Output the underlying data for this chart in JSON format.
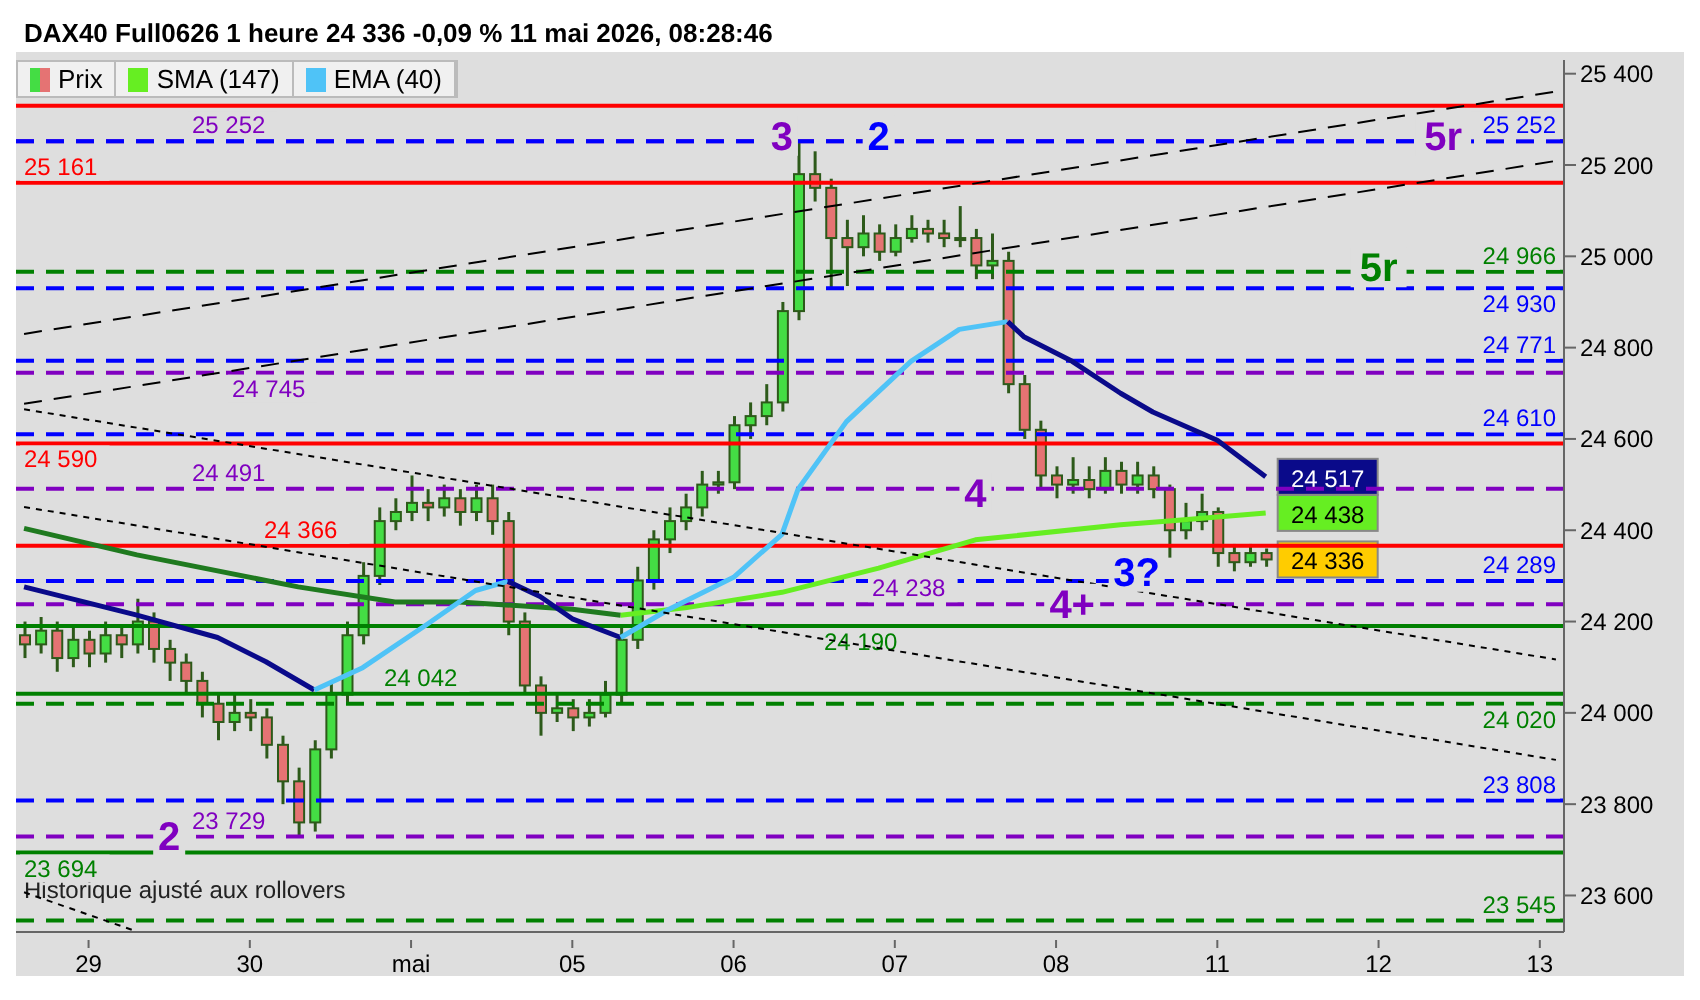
{
  "chart_data": {
    "type": "candlestick",
    "title": "DAX40 Full0626 1 heure 24 336 -0,09 % 11 mai 2026, 08:28:46",
    "legend": "top left",
    "categories": [
      null,
      null,
      null,
      null,
      "29",
      null,
      null,
      null,
      null,
      null,
      null,
      null,
      null,
      null,
      "30",
      null,
      null,
      null,
      null,
      null,
      null,
      null,
      null,
      null,
      "mai",
      null,
      null,
      null,
      null,
      null,
      null,
      null,
      null,
      null,
      "05",
      null,
      null,
      null,
      null,
      null,
      null,
      null,
      null,
      null,
      "06",
      null,
      null,
      null,
      null,
      null,
      null,
      null,
      null,
      null,
      "07",
      null,
      null,
      null,
      null,
      null,
      null,
      null,
      null,
      null,
      "08",
      null,
      null,
      null,
      null,
      null,
      null,
      null,
      null,
      null,
      "11",
      null,
      null,
      null,
      null,
      null,
      null,
      null,
      null,
      null,
      "12",
      null,
      null,
      null,
      null,
      null,
      null,
      null,
      null,
      null,
      "13",
      null
    ],
    "ylim": [
      23520,
      25430
    ],
    "yticks": [
      {
        "value": 23600,
        "label": "23 600"
      },
      {
        "value": 23800,
        "label": "23 800"
      },
      {
        "value": 24000,
        "label": "24 000"
      },
      {
        "value": 24200,
        "label": "24 200"
      },
      {
        "value": 24400,
        "label": "24 400"
      },
      {
        "value": 24600,
        "label": "24 600"
      },
      {
        "value": 24800,
        "label": "24 800"
      },
      {
        "value": 25000,
        "label": "25 000"
      },
      {
        "value": 25200,
        "label": "25 200"
      },
      {
        "value": 25400,
        "label": "25 400"
      }
    ],
    "series": [
      {
        "name": "Prix",
        "type": "candlestick",
        "ohlc": [
          [
            24170,
            24200,
            24120,
            24150
          ],
          [
            24150,
            24210,
            24130,
            24180
          ],
          [
            24180,
            24200,
            24090,
            24120
          ],
          [
            24120,
            24190,
            24100,
            24160
          ],
          [
            24160,
            24180,
            24100,
            24130
          ],
          [
            24130,
            24200,
            24110,
            24170
          ],
          [
            24170,
            24190,
            24120,
            24150
          ],
          [
            24150,
            24250,
            24130,
            24200
          ],
          [
            24200,
            24220,
            24110,
            24140
          ],
          [
            24140,
            24160,
            24070,
            24110
          ],
          [
            24110,
            24130,
            24040,
            24070
          ],
          [
            24070,
            24090,
            23990,
            24020
          ],
          [
            24020,
            24040,
            23940,
            23980
          ],
          [
            23980,
            24040,
            23960,
            24000
          ],
          [
            24000,
            24030,
            23960,
            23990
          ],
          [
            23990,
            24010,
            23900,
            23930
          ],
          [
            23930,
            23950,
            23800,
            23850
          ],
          [
            23850,
            23880,
            23729,
            23760
          ],
          [
            23760,
            23940,
            23740,
            23920
          ],
          [
            23920,
            24070,
            23900,
            24040
          ],
          [
            24040,
            24200,
            24020,
            24170
          ],
          [
            24170,
            24330,
            24150,
            24300
          ],
          [
            24300,
            24450,
            24280,
            24420
          ],
          [
            24420,
            24470,
            24400,
            24440
          ],
          [
            24440,
            24520,
            24420,
            24460
          ],
          [
            24460,
            24490,
            24420,
            24450
          ],
          [
            24450,
            24500,
            24430,
            24470
          ],
          [
            24470,
            24490,
            24410,
            24440
          ],
          [
            24440,
            24500,
            24420,
            24470
          ],
          [
            24470,
            24500,
            24390,
            24420
          ],
          [
            24420,
            24440,
            24170,
            24200
          ],
          [
            24200,
            24220,
            24040,
            24060
          ],
          [
            24060,
            24080,
            23950,
            24000
          ],
          [
            24000,
            24040,
            23980,
            24010
          ],
          [
            24010,
            24030,
            23960,
            23990
          ],
          [
            23990,
            24030,
            23970,
            24000
          ],
          [
            24000,
            24070,
            23990,
            24040
          ],
          [
            24040,
            24190,
            24020,
            24160
          ],
          [
            24160,
            24320,
            24140,
            24290
          ],
          [
            24290,
            24400,
            24270,
            24380
          ],
          [
            24380,
            24450,
            24350,
            24420
          ],
          [
            24420,
            24480,
            24400,
            24450
          ],
          [
            24450,
            24530,
            24430,
            24500
          ],
          [
            24500,
            24530,
            24480,
            24505
          ],
          [
            24505,
            24650,
            24490,
            24630
          ],
          [
            24630,
            24680,
            24600,
            24650
          ],
          [
            24650,
            24720,
            24630,
            24680
          ],
          [
            24680,
            24900,
            24660,
            24880
          ],
          [
            24880,
            25252,
            24860,
            25180
          ],
          [
            25180,
            25230,
            25120,
            25150
          ],
          [
            25150,
            25170,
            24930,
            25040
          ],
          [
            25040,
            25080,
            24935,
            25020
          ],
          [
            25020,
            25090,
            25000,
            25050
          ],
          [
            25050,
            25070,
            24990,
            25010
          ],
          [
            25010,
            25070,
            25000,
            25040
          ],
          [
            25040,
            25090,
            25030,
            25060
          ],
          [
            25060,
            25080,
            25030,
            25050
          ],
          [
            25050,
            25080,
            25020,
            25040
          ],
          [
            25040,
            25110,
            25020,
            25040
          ],
          [
            25040,
            25060,
            24950,
            24980
          ],
          [
            24980,
            25050,
            24950,
            24990
          ],
          [
            24990,
            25010,
            24700,
            24720
          ],
          [
            24720,
            24740,
            24600,
            24620
          ],
          [
            24620,
            24640,
            24490,
            24520
          ],
          [
            24520,
            24540,
            24470,
            24500
          ],
          [
            24500,
            24560,
            24480,
            24510
          ],
          [
            24510,
            24540,
            24470,
            24490
          ],
          [
            24490,
            24560,
            24480,
            24530
          ],
          [
            24530,
            24550,
            24480,
            24500
          ],
          [
            24500,
            24550,
            24480,
            24520
          ],
          [
            24520,
            24540,
            24470,
            24490
          ],
          [
            24490,
            24500,
            24340,
            24400
          ],
          [
            24400,
            24460,
            24380,
            24420
          ],
          [
            24420,
            24480,
            24400,
            24440
          ],
          [
            24440,
            24450,
            24320,
            24350
          ],
          [
            24350,
            24370,
            24310,
            24330
          ],
          [
            24330,
            24370,
            24320,
            24350
          ],
          [
            24350,
            24360,
            24320,
            24336
          ],
          null,
          null,
          null,
          null,
          null,
          null,
          null,
          null,
          null,
          null,
          null,
          null,
          null,
          null,
          null,
          null,
          null,
          null
        ],
        "value_labels": [
          null,
          null,
          null,
          null,
          null,
          null,
          null,
          null,
          null,
          null,
          null,
          null,
          null,
          null,
          null,
          null,
          null,
          null,
          null,
          null,
          null,
          null,
          null,
          null,
          null,
          null,
          null,
          null,
          null,
          null,
          null,
          null,
          null,
          null,
          null,
          null,
          null,
          null,
          null,
          null,
          null,
          null,
          null,
          null,
          null,
          null,
          null,
          null,
          null,
          null,
          null,
          null,
          null,
          null,
          null,
          null,
          null,
          null,
          null,
          null,
          null,
          null,
          null,
          null,
          null,
          null,
          null,
          null,
          null,
          null,
          null,
          null,
          null,
          null,
          null,
          null,
          null,
          "24 336",
          null,
          null,
          null,
          null,
          null,
          null,
          null,
          null,
          null,
          null,
          null,
          null,
          null,
          null,
          null,
          null,
          null,
          null
        ]
      },
      {
        "type": "line",
        "color": "#1f7a1f",
        "values": [
          24404,
          null,
          null,
          null,
          null,
          null,
          null,
          24346,
          null,
          null,
          null,
          null,
          null,
          null,
          null,
          null,
          null,
          24276,
          null,
          null,
          null,
          null,
          null,
          24243,
          null,
          null,
          null,
          24243,
          null,
          null,
          null,
          null,
          null,
          null,
          24227,
          null,
          null,
          24214,
          null,
          null,
          null,
          null,
          null,
          null,
          null,
          null,
          null,
          null,
          null,
          null,
          null,
          null,
          null,
          null,
          null,
          null,
          null,
          null,
          null,
          null,
          null,
          null,
          null,
          null,
          null,
          null,
          null,
          null,
          null,
          null,
          null,
          null,
          null,
          null,
          null,
          null,
          null,
          null,
          null,
          null,
          null,
          null,
          null,
          null,
          null,
          null,
          null,
          null,
          null,
          null,
          null,
          null,
          null,
          null,
          null,
          null
        ]
      },
      {
        "name": "SMA (147)",
        "type": "line",
        "color": "#66ee22",
        "values": [
          null,
          null,
          null,
          null,
          null,
          null,
          null,
          null,
          null,
          null,
          null,
          null,
          null,
          null,
          null,
          null,
          null,
          null,
          null,
          null,
          null,
          null,
          null,
          null,
          null,
          null,
          null,
          null,
          null,
          null,
          null,
          null,
          null,
          null,
          null,
          null,
          null,
          24214,
          null,
          null,
          null,
          24230,
          null,
          null,
          null,
          null,
          null,
          24264,
          null,
          null,
          null,
          null,
          null,
          24317,
          null,
          null,
          null,
          null,
          null,
          24379,
          null,
          null,
          null,
          null,
          null,
          null,
          null,
          null,
          24412,
          null,
          null,
          24420,
          null,
          null,
          null,
          null,
          null,
          24438,
          null,
          null,
          null,
          null,
          null,
          null,
          null,
          null,
          null,
          null,
          null,
          null,
          null,
          null,
          null,
          null,
          null,
          null
        ],
        "value_labels": [
          null,
          null,
          null,
          null,
          null,
          null,
          null,
          null,
          null,
          null,
          null,
          null,
          null,
          null,
          null,
          null,
          null,
          null,
          null,
          null,
          null,
          null,
          null,
          null,
          null,
          null,
          null,
          null,
          null,
          null,
          null,
          null,
          null,
          null,
          null,
          null,
          null,
          null,
          null,
          null,
          null,
          null,
          null,
          null,
          null,
          null,
          null,
          null,
          null,
          null,
          null,
          null,
          null,
          null,
          null,
          null,
          null,
          null,
          null,
          null,
          null,
          null,
          null,
          null,
          null,
          null,
          null,
          null,
          null,
          null,
          null,
          null,
          null,
          null,
          null,
          null,
          null,
          "24 438",
          null,
          null,
          null,
          null,
          null,
          null,
          null,
          null,
          null,
          null,
          null,
          null,
          null,
          null,
          null,
          null,
          null,
          null
        ]
      },
      {
        "type": "line",
        "color": "#0a0a8a",
        "values": [
          24276,
          null,
          null,
          null,
          null,
          null,
          null,
          24214,
          null,
          null,
          null,
          null,
          24165,
          null,
          null,
          24112,
          null,
          null,
          24050,
          null,
          null,
          null,
          null,
          null,
          null,
          null,
          null,
          null,
          null,
          null,
          null,
          null,
          null,
          null,
          null,
          null,
          null,
          null,
          null,
          null,
          null,
          null,
          null,
          null,
          null,
          null,
          null,
          null,
          null,
          null,
          null,
          null,
          null,
          null,
          null,
          null,
          null,
          null,
          null,
          null,
          null,
          null,
          null,
          null,
          null,
          null,
          null,
          null,
          null,
          null,
          null,
          null,
          null,
          null,
          null,
          null,
          null,
          null,
          null,
          null,
          null,
          null,
          null,
          null,
          null,
          null,
          null,
          null,
          null,
          null,
          null,
          null,
          null,
          null,
          null,
          null
        ]
      },
      {
        "name": "EMA (40)",
        "type": "line",
        "color": "#4fc3f7",
        "values": [
          null,
          null,
          null,
          null,
          null,
          null,
          null,
          null,
          null,
          null,
          null,
          null,
          null,
          null,
          null,
          null,
          null,
          null,
          24050,
          null,
          null,
          24099,
          null,
          null,
          null,
          24194,
          null,
          null,
          24268,
          null,
          24288,
          null,
          null,
          null,
          null,
          null,
          null,
          null,
          null,
          null,
          null,
          null,
          null,
          null,
          null,
          null,
          null,
          null,
          null,
          null,
          null,
          null,
          null,
          null,
          null,
          null,
          null,
          null,
          null,
          null,
          null,
          null,
          null,
          null,
          null,
          null,
          null,
          null,
          null,
          null,
          null,
          null,
          null,
          null,
          null,
          null,
          null,
          null,
          null,
          null,
          null,
          null,
          null,
          null,
          null,
          null,
          null,
          null,
          null,
          null,
          null,
          null,
          null,
          null,
          null,
          null
        ]
      },
      {
        "type": "line",
        "color": "#0a0a8a",
        "values": [
          null,
          null,
          null,
          null,
          null,
          null,
          null,
          null,
          null,
          null,
          null,
          null,
          null,
          null,
          null,
          null,
          null,
          null,
          null,
          null,
          null,
          null,
          null,
          null,
          null,
          null,
          null,
          null,
          null,
          null,
          24288,
          null,
          24255,
          null,
          24206,
          null,
          null,
          24165,
          null,
          null,
          null,
          null,
          null,
          null,
          null,
          null,
          null,
          null,
          null,
          null,
          null,
          null,
          null,
          null,
          null,
          null,
          null,
          null,
          null,
          null,
          null,
          null,
          null,
          null,
          null,
          null,
          null,
          null,
          null,
          null,
          null,
          null,
          null,
          null,
          null,
          null,
          null,
          null,
          null,
          null,
          null,
          null,
          null,
          null,
          null,
          null,
          null,
          null,
          null,
          null,
          null,
          null,
          null,
          null,
          null,
          null
        ]
      },
      {
        "type": "line",
        "color": "#4fc3f7",
        "values": [
          null,
          null,
          null,
          null,
          null,
          null,
          null,
          null,
          null,
          null,
          null,
          null,
          null,
          null,
          null,
          null,
          null,
          null,
          null,
          null,
          null,
          null,
          null,
          null,
          null,
          null,
          null,
          null,
          null,
          null,
          null,
          null,
          null,
          null,
          null,
          null,
          null,
          24165,
          null,
          null,
          24227,
          null,
          null,
          null,
          24297,
          null,
          null,
          24391,
          24490,
          null,
          null,
          24638,
          null,
          null,
          null,
          24770,
          null,
          null,
          24840,
          null,
          null,
          24857,
          null,
          null,
          null,
          null,
          null,
          null,
          null,
          null,
          null,
          null,
          null,
          null,
          null,
          null,
          null,
          null,
          null,
          null,
          null,
          null,
          null,
          null,
          null,
          null,
          null,
          null,
          null,
          null,
          null,
          null,
          null,
          null,
          null,
          null
        ]
      },
      {
        "type": "line",
        "color": "#0a0a8a",
        "values": [
          null,
          null,
          null,
          null,
          null,
          null,
          null,
          null,
          null,
          null,
          null,
          null,
          null,
          null,
          null,
          null,
          null,
          null,
          null,
          null,
          null,
          null,
          null,
          null,
          null,
          null,
          null,
          null,
          null,
          null,
          null,
          null,
          null,
          null,
          null,
          null,
          null,
          null,
          null,
          null,
          null,
          null,
          null,
          null,
          null,
          null,
          null,
          null,
          null,
          null,
          null,
          null,
          null,
          null,
          null,
          null,
          null,
          null,
          null,
          null,
          null,
          24857,
          24824,
          null,
          null,
          24770,
          null,
          null,
          24700,
          null,
          24659,
          null,
          null,
          null,
          24597,
          null,
          null,
          24517,
          null,
          null,
          null,
          null,
          null,
          null,
          null,
          null,
          null,
          null,
          null,
          null,
          null,
          null,
          null,
          null,
          null,
          null
        ],
        "value_labels": [
          null,
          null,
          null,
          null,
          null,
          null,
          null,
          null,
          null,
          null,
          null,
          null,
          null,
          null,
          null,
          null,
          null,
          null,
          null,
          null,
          null,
          null,
          null,
          null,
          null,
          null,
          null,
          null,
          null,
          null,
          null,
          null,
          null,
          null,
          null,
          null,
          null,
          null,
          null,
          null,
          null,
          null,
          null,
          null,
          null,
          null,
          null,
          null,
          null,
          null,
          null,
          null,
          null,
          null,
          null,
          null,
          null,
          null,
          null,
          null,
          null,
          null,
          null,
          null,
          null,
          null,
          null,
          null,
          null,
          null,
          null,
          null,
          null,
          null,
          null,
          null,
          null,
          "24 517",
          null,
          null,
          null,
          null,
          null,
          null,
          null,
          null,
          null,
          null,
          null,
          null,
          null,
          null,
          null,
          null,
          null,
          null
        ]
      },
      {
        "type": "line",
        "color": "#000000",
        "line_style": "dashed",
        "values": [
          24830,
          null,
          null,
          null,
          null,
          null,
          null,
          null,
          null,
          null,
          null,
          null,
          null,
          null,
          null,
          null,
          null,
          null,
          null,
          null,
          null,
          null,
          null,
          null,
          null,
          null,
          null,
          null,
          null,
          null,
          null,
          null,
          null,
          null,
          null,
          null,
          null,
          null,
          null,
          null,
          null,
          null,
          null,
          null,
          null,
          null,
          null,
          null,
          null,
          null,
          null,
          null,
          null,
          null,
          null,
          null,
          null,
          null,
          null,
          null,
          null,
          null,
          null,
          null,
          null,
          null,
          null,
          null,
          null,
          null,
          null,
          null,
          null,
          null,
          null,
          null,
          null,
          null,
          null,
          null,
          null,
          null,
          null,
          null,
          null,
          null,
          null,
          null,
          null,
          null,
          null,
          null,
          null,
          null,
          null,
          25361
        ]
      },
      {
        "type": "line",
        "color": "#000000",
        "line_style": "dashed",
        "values": [
          24677,
          null,
          null,
          null,
          null,
          null,
          null,
          null,
          null,
          null,
          null,
          null,
          null,
          null,
          null,
          null,
          null,
          null,
          null,
          null,
          null,
          null,
          null,
          null,
          null,
          null,
          null,
          null,
          null,
          null,
          null,
          null,
          null,
          null,
          null,
          null,
          null,
          null,
          null,
          null,
          null,
          null,
          null,
          null,
          null,
          null,
          null,
          null,
          null,
          null,
          null,
          null,
          null,
          null,
          null,
          null,
          null,
          null,
          null,
          null,
          null,
          null,
          null,
          null,
          null,
          null,
          null,
          null,
          null,
          null,
          null,
          null,
          null,
          null,
          null,
          null,
          null,
          null,
          null,
          null,
          null,
          null,
          null,
          null,
          null,
          null,
          null,
          null,
          null,
          null,
          null,
          null,
          null,
          null,
          null,
          25209
        ]
      },
      {
        "type": "line",
        "color": "#000000",
        "line_style": "dotted",
        "values": [
          24665,
          null,
          null,
          null,
          null,
          null,
          null,
          null,
          null,
          null,
          null,
          null,
          null,
          null,
          null,
          null,
          null,
          null,
          null,
          null,
          null,
          null,
          null,
          null,
          null,
          null,
          null,
          null,
          null,
          null,
          null,
          null,
          null,
          null,
          null,
          null,
          null,
          null,
          null,
          null,
          null,
          null,
          null,
          null,
          null,
          null,
          null,
          null,
          null,
          null,
          null,
          null,
          null,
          null,
          null,
          null,
          null,
          null,
          null,
          null,
          null,
          null,
          null,
          null,
          null,
          null,
          null,
          null,
          null,
          null,
          null,
          null,
          null,
          null,
          null,
          null,
          null,
          null,
          null,
          null,
          null,
          null,
          null,
          null,
          null,
          null,
          null,
          null,
          null,
          null,
          null,
          null,
          null,
          null,
          null,
          24117
        ]
      },
      {
        "type": "line",
        "color": "#000000",
        "line_style": "dotted",
        "values": [
          24451,
          null,
          null,
          null,
          null,
          null,
          null,
          null,
          null,
          null,
          null,
          null,
          null,
          null,
          null,
          null,
          null,
          null,
          null,
          null,
          null,
          null,
          null,
          null,
          null,
          null,
          null,
          null,
          null,
          null,
          null,
          null,
          null,
          null,
          null,
          null,
          null,
          null,
          null,
          null,
          null,
          null,
          null,
          null,
          null,
          null,
          null,
          null,
          null,
          null,
          null,
          null,
          null,
          null,
          null,
          null,
          null,
          null,
          null,
          null,
          null,
          null,
          null,
          null,
          null,
          null,
          null,
          null,
          null,
          null,
          null,
          null,
          null,
          null,
          null,
          null,
          null,
          null,
          null,
          null,
          null,
          null,
          null,
          null,
          null,
          null,
          null,
          null,
          null,
          null,
          null,
          null,
          null,
          null,
          null,
          23897
        ]
      },
      {
        "type": "line",
        "color": "#000000",
        "line_style": "dotted",
        "values": [
          23607,
          null,
          null,
          null,
          null,
          null,
          null,
          23521,
          null,
          null,
          null,
          null,
          null,
          null,
          null,
          null,
          null,
          null,
          null,
          null,
          null,
          null,
          null,
          null,
          null,
          null,
          null,
          null,
          null,
          null,
          null,
          null,
          null,
          null,
          null,
          null,
          null,
          null,
          null,
          null,
          null,
          null,
          null,
          null,
          null,
          null,
          null,
          null,
          null,
          null,
          null,
          null,
          null,
          null,
          null,
          null,
          null,
          null,
          null,
          null,
          null,
          null,
          null,
          null,
          null,
          null,
          null,
          null,
          null,
          null,
          null,
          null,
          null,
          null,
          null,
          null,
          null,
          null,
          null,
          null,
          null,
          null,
          null,
          null,
          null,
          null,
          null,
          null,
          null,
          null,
          null,
          null,
          null,
          null,
          null,
          null
        ]
      }
    ],
    "ref_lines": [
      {
        "axis": "y",
        "value": 25330,
        "color": "#ff0000",
        "line_style": "solid"
      },
      {
        "axis": "y",
        "value": 25252,
        "label": "25 252",
        "color": "#8000c0",
        "line_style": "dashed"
      },
      {
        "axis": "y",
        "value": 25252,
        "label": "25 252",
        "color": "#0000ff",
        "line_style": "dashed"
      },
      {
        "axis": "y",
        "value": 25161,
        "label": "25 161",
        "color": "#ff0000",
        "line_style": "solid"
      },
      {
        "axis": "y",
        "value": 24966,
        "label": "24 966",
        "color": "#008000",
        "line_style": "dashed"
      },
      {
        "axis": "y",
        "value": 24930,
        "label": "24 930",
        "color": "#0000ff",
        "line_style": "dashed"
      },
      {
        "axis": "y",
        "value": 24771,
        "label": "24 771",
        "color": "#0000ff",
        "line_style": "dashed"
      },
      {
        "axis": "y",
        "value": 24745,
        "label": "24 745",
        "color": "#8000c0",
        "line_style": "dashed"
      },
      {
        "axis": "y",
        "value": 24610,
        "label": "24 610",
        "color": "#0000ff",
        "line_style": "dashed"
      },
      {
        "axis": "y",
        "value": 24590,
        "label": "24 590",
        "color": "#ff0000",
        "line_style": "solid"
      },
      {
        "axis": "y",
        "value": 24491,
        "label": "24 491",
        "color": "#8000c0",
        "line_style": "dashed"
      },
      {
        "axis": "y",
        "value": 24366,
        "label": "24 366",
        "color": "#ff0000",
        "line_style": "solid"
      },
      {
        "axis": "y",
        "value": 24289,
        "label": "24 289",
        "color": "#0000ff",
        "line_style": "dashed"
      },
      {
        "axis": "y",
        "value": 24238,
        "label": "24 238",
        "color": "#8000c0",
        "line_style": "dashed"
      },
      {
        "axis": "y",
        "value": 24190,
        "label": "24 190",
        "color": "#008000",
        "line_style": "solid"
      },
      {
        "axis": "y",
        "value": 24042,
        "label": "24 042",
        "color": "#008000",
        "line_style": "solid"
      },
      {
        "axis": "y",
        "value": 24020,
        "label": "24 020",
        "color": "#008000",
        "line_style": "dashed"
      },
      {
        "axis": "y",
        "value": 23808,
        "label": "23 808",
        "color": "#0000ff",
        "line_style": "dashed"
      },
      {
        "axis": "y",
        "value": 23729,
        "label": "23 729",
        "color": "#8000c0",
        "line_style": "dashed"
      },
      {
        "axis": "y",
        "value": 23694,
        "label": "23 694",
        "color": "#008000",
        "line_style": "solid"
      },
      {
        "axis": "y",
        "value": 23545,
        "label": "23 545",
        "color": "#008000",
        "line_style": "dashed"
      }
    ],
    "annotations": [
      {
        "text": "2",
        "y": 23730
      },
      {
        "text": "3",
        "y": 25264
      },
      {
        "text": "2",
        "y": 25264
      },
      {
        "text": "4",
        "y": 24482
      },
      {
        "text": "4+",
        "y": 24239
      },
      {
        "text": "3?",
        "y": 24309
      },
      {
        "text": "5r",
        "y": 25264
      },
      {
        "text": "5r",
        "y": 24976
      },
      "Historique ajusté aux rollovers"
    ]
  }
}
